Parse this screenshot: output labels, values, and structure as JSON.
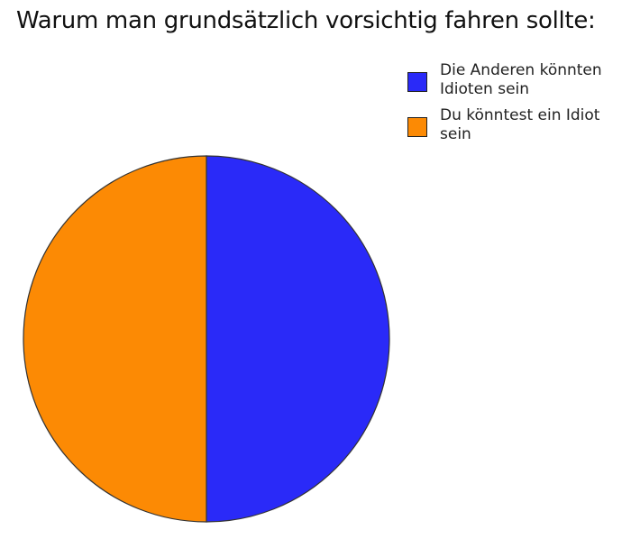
{
  "chart_data": {
    "type": "pie",
    "title": "Warum man grundsätzlich vorsichtig fahren sollte:",
    "categories": [
      "Die Anderen könnten Idioten sein",
      "Du könntest ein Idiot sein"
    ],
    "values": [
      50,
      50
    ],
    "colors": [
      "#2a2af8",
      "#fc8a04"
    ]
  }
}
